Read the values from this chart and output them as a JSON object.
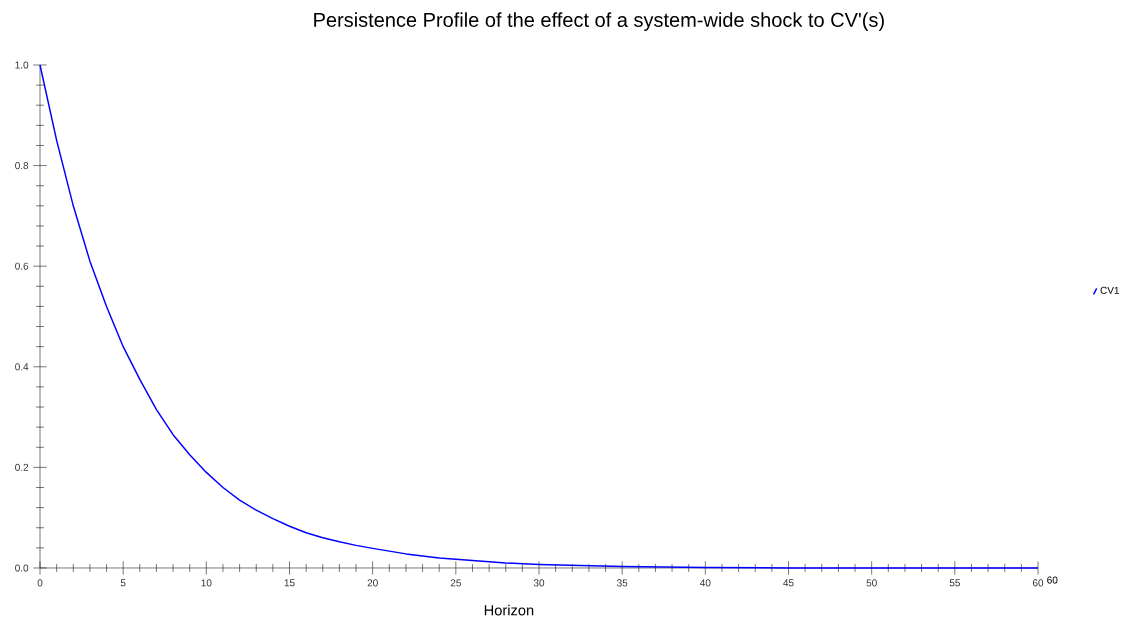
{
  "chart_data": {
    "type": "line",
    "title": "Persistence Profile of the effect of a system-wide shock to CV'(s)",
    "xlabel": "Horizon",
    "annotations": [
      "60"
    ],
    "x": [
      0,
      1,
      2,
      3,
      4,
      5,
      6,
      7,
      8,
      9,
      10,
      11,
      12,
      13,
      14,
      15,
      16,
      17,
      18,
      19,
      20,
      22,
      24,
      26,
      28,
      30,
      35,
      40,
      45,
      50,
      55,
      60
    ],
    "series": [
      {
        "name": "CV1",
        "color": "#0000ff",
        "values": [
          1.0,
          0.85,
          0.72,
          0.61,
          0.52,
          0.44,
          0.375,
          0.315,
          0.265,
          0.225,
          0.19,
          0.16,
          0.135,
          0.115,
          0.098,
          0.083,
          0.07,
          0.06,
          0.052,
          0.045,
          0.039,
          0.028,
          0.02,
          0.015,
          0.01,
          0.007,
          0.003,
          0.001,
          0,
          0,
          0,
          0
        ]
      }
    ],
    "xlim": [
      0,
      60
    ],
    "ylim": [
      0,
      1.0
    ],
    "xticks": [
      0,
      5,
      10,
      15,
      20,
      25,
      30,
      35,
      40,
      45,
      50,
      55,
      60
    ],
    "yticks": [
      {
        "value": 0,
        "label": "0.0"
      },
      {
        "value": 0.2,
        "label": "0.2"
      },
      {
        "value": 0.4,
        "label": "0.4"
      },
      {
        "value": 0.6,
        "label": "0.6"
      },
      {
        "value": 0.8,
        "label": "0.8"
      },
      {
        "value": 1.0,
        "label": "1.0"
      }
    ],
    "grid": false,
    "legend": "right",
    "marker": "none",
    "line_style": "solid"
  }
}
